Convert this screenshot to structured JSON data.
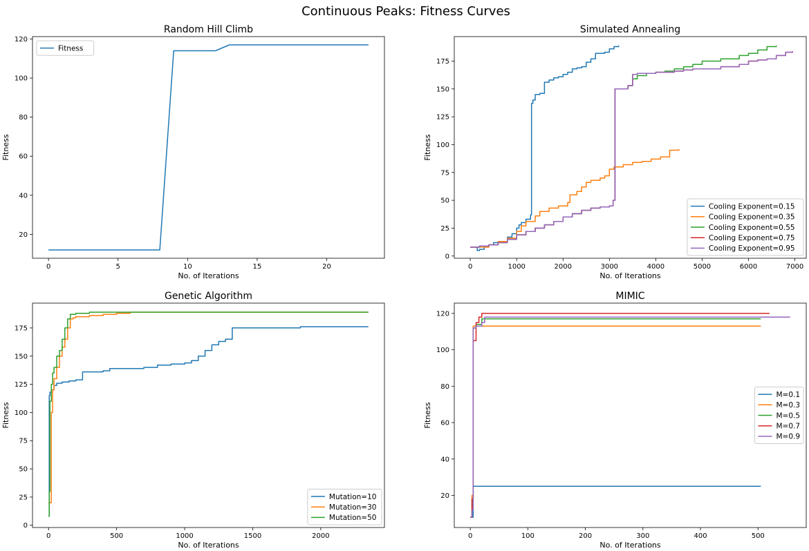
{
  "figure": {
    "title": "Continuous Peaks: Fitness Curves"
  },
  "chart_data": [
    {
      "type": "line",
      "title": "Random Hill Climb",
      "xlabel": "No. of Iterations",
      "ylabel": "Fitness",
      "xlim": [
        -1.15,
        24.15
      ],
      "ylim": [
        7.75,
        121.25
      ],
      "xticks": [
        0,
        5,
        10,
        15,
        20
      ],
      "yticks": [
        20,
        40,
        60,
        80,
        100,
        120
      ],
      "legend_position": "upper-left",
      "step": false,
      "series": [
        {
          "name": "Fitness",
          "color": "#1f77b4",
          "x": [
            0,
            8,
            9,
            12,
            13,
            23
          ],
          "y": [
            12,
            12,
            114,
            114,
            117,
            117
          ]
        }
      ]
    },
    {
      "type": "line",
      "title": "Simulated Annealing",
      "xlabel": "No. of Iterations",
      "ylabel": "Fitness",
      "xlim": [
        -345,
        7245
      ],
      "ylim": [
        -2,
        197
      ],
      "xticks": [
        0,
        1000,
        2000,
        3000,
        4000,
        5000,
        6000,
        7000
      ],
      "yticks": [
        0,
        25,
        50,
        75,
        100,
        125,
        150,
        175
      ],
      "legend_position": "lower-right",
      "step": true,
      "series": [
        {
          "name": "Cooling Exponent=0.15",
          "color": "#1f77b4",
          "x": [
            0,
            100,
            150,
            200,
            300,
            400,
            500,
            600,
            800,
            900,
            1000,
            1050,
            1100,
            1200,
            1300,
            1320,
            1350,
            1400,
            1500,
            1600,
            1700,
            1800,
            1900,
            2000,
            2100,
            2200,
            2300,
            2400,
            2500,
            2600,
            2700,
            2800,
            2900,
            3000,
            3100,
            3200
          ],
          "y": [
            8,
            8,
            5,
            6,
            8,
            10,
            12,
            13,
            17,
            20,
            25,
            28,
            30,
            33,
            37,
            137,
            140,
            145,
            146,
            156,
            158,
            160,
            161,
            163,
            165,
            168,
            169,
            170,
            174,
            177,
            182,
            182,
            183,
            186,
            188,
            189
          ]
        },
        {
          "name": "Cooling Exponent=0.35",
          "color": "#ff7f0e",
          "x": [
            0,
            100,
            200,
            400,
            600,
            800,
            1000,
            1100,
            1200,
            1300,
            1400,
            1500,
            1700,
            1900,
            2100,
            2150,
            2300,
            2400,
            2500,
            2600,
            2800,
            2900,
            3000,
            3100,
            3300,
            3500,
            3700,
            3900,
            4100,
            4300,
            4500
          ],
          "y": [
            8,
            8,
            8,
            10,
            13,
            16,
            22,
            27,
            31,
            31,
            36,
            40,
            43,
            45,
            48,
            55,
            58,
            62,
            66,
            68,
            70,
            72,
            78,
            80,
            82,
            84,
            85,
            87,
            89,
            95,
            96
          ]
        },
        {
          "name": "Cooling Exponent=0.55",
          "color": "#2ca02c",
          "x": [
            0,
            200,
            400,
            600,
            800,
            1000,
            1200,
            1400,
            1600,
            1800,
            2000,
            2200,
            2400,
            2600,
            2800,
            3000,
            3080,
            3120,
            3400,
            3500,
            3600,
            3800,
            4000,
            4200,
            4400,
            4600,
            4800,
            5000,
            5400,
            5800,
            6000,
            6200,
            6400,
            6600
          ],
          "y": [
            8,
            9,
            10,
            12,
            15,
            19,
            22,
            25,
            28,
            31,
            35,
            38,
            41,
            43,
            44,
            45,
            50,
            150,
            153,
            159,
            162,
            164,
            165,
            166,
            168,
            170,
            172,
            175,
            177,
            180,
            182,
            185,
            188,
            189
          ]
        },
        {
          "name": "Cooling Exponent=0.75",
          "color": "#d62728",
          "x": [
            0,
            200,
            400,
            600,
            800,
            1000,
            1200,
            1400,
            1600,
            1800,
            2000,
            2200,
            2400,
            2600,
            2800,
            3000,
            3080,
            3120,
            3400,
            3500,
            3600,
            3800,
            4000,
            4200,
            4400,
            4600,
            4800,
            5000,
            5400,
            5800,
            6000,
            6200,
            6400,
            6600,
            6800,
            6950
          ],
          "y": [
            8,
            9,
            10,
            12,
            15,
            19,
            22,
            25,
            28,
            31,
            35,
            38,
            41,
            43,
            44,
            45,
            50,
            150,
            153,
            163,
            164,
            164,
            165,
            165,
            166,
            167,
            168,
            168,
            170,
            172,
            175,
            176,
            177,
            180,
            183,
            184
          ]
        },
        {
          "name": "Cooling Exponent=0.95",
          "color": "#9467bd",
          "x": [
            0,
            200,
            400,
            600,
            800,
            1000,
            1200,
            1400,
            1600,
            1800,
            2000,
            2200,
            2400,
            2600,
            2800,
            3000,
            3080,
            3120,
            3400,
            3500,
            3600,
            3800,
            4000,
            4200,
            4400,
            4600,
            4800,
            5000,
            5400,
            5800,
            6000,
            6200,
            6400,
            6600,
            6800,
            6950
          ],
          "y": [
            8,
            9,
            10,
            12,
            15,
            19,
            22,
            25,
            28,
            31,
            35,
            38,
            41,
            43,
            44,
            45,
            50,
            150,
            153,
            163,
            164,
            164,
            165,
            165,
            166,
            167,
            168,
            168,
            170,
            172,
            175,
            176,
            177,
            180,
            183,
            184
          ]
        }
      ]
    },
    {
      "type": "line",
      "title": "Genetic Algorithm",
      "xlabel": "No. of Iterations",
      "ylabel": "Fitness",
      "xlim": [
        -118,
        2468
      ],
      "ylim": [
        -2,
        197
      ],
      "xticks": [
        0,
        500,
        1000,
        1500,
        2000
      ],
      "yticks": [
        0,
        25,
        50,
        75,
        100,
        125,
        150,
        175
      ],
      "legend_position": "lower-right",
      "step": true,
      "series": [
        {
          "name": "Mutation=10",
          "color": "#1f77b4",
          "x": [
            0,
            5,
            10,
            20,
            40,
            60,
            100,
            150,
            200,
            250,
            300,
            400,
            450,
            700,
            800,
            900,
            1000,
            1050,
            1100,
            1150,
            1200,
            1250,
            1300,
            1350,
            1400,
            1600,
            1800,
            1850,
            2000,
            2350
          ],
          "y": [
            8,
            115,
            118,
            120,
            124,
            126,
            127,
            128,
            129,
            136,
            136,
            137,
            139,
            140,
            142,
            143,
            144,
            146,
            150,
            155,
            160,
            163,
            165,
            175,
            175,
            175,
            175,
            176,
            176,
            176
          ]
        },
        {
          "name": "Mutation=30",
          "color": "#ff7f0e",
          "x": [
            0,
            15,
            20,
            30,
            40,
            60,
            80,
            100,
            120,
            140,
            160,
            180,
            200,
            300,
            400,
            500,
            600,
            2350
          ],
          "y": [
            20,
            20,
            100,
            120,
            130,
            140,
            150,
            158,
            165,
            175,
            183,
            184,
            185,
            186,
            187,
            188,
            189,
            189
          ]
        },
        {
          "name": "Mutation=50",
          "color": "#2ca02c",
          "x": [
            0,
            5,
            10,
            20,
            30,
            40,
            60,
            80,
            100,
            120,
            140,
            160,
            200,
            300,
            350,
            2350
          ],
          "y": [
            8,
            30,
            110,
            125,
            135,
            140,
            150,
            155,
            165,
            175,
            183,
            187,
            188,
            189,
            189,
            189
          ]
        }
      ]
    },
    {
      "type": "line",
      "title": "MIMIC",
      "xlabel": "No. of Iterations",
      "ylabel": "Fitness",
      "xlim": [
        -27.8,
        583.8
      ],
      "ylim": [
        2.35,
        125.65
      ],
      "xticks": [
        0,
        100,
        200,
        300,
        400,
        500
      ],
      "yticks": [
        20,
        40,
        60,
        80,
        100,
        120
      ],
      "legend_position": "center-right",
      "step": true,
      "series": [
        {
          "name": "M=0.1",
          "color": "#1f77b4",
          "x": [
            0,
            5,
            505
          ],
          "y": [
            8,
            25,
            25
          ]
        },
        {
          "name": "M=0.3",
          "color": "#ff7f0e",
          "x": [
            0,
            3,
            5,
            505
          ],
          "y": [
            8,
            20,
            113,
            113
          ]
        },
        {
          "name": "M=0.5",
          "color": "#2ca02c",
          "x": [
            0,
            3,
            5,
            10,
            20,
            505
          ],
          "y": [
            8,
            18,
            112,
            114,
            117,
            117
          ]
        },
        {
          "name": "M=0.7",
          "color": "#d62728",
          "x": [
            0,
            3,
            5,
            10,
            15,
            20,
            520
          ],
          "y": [
            8,
            18,
            105,
            115,
            118,
            120,
            120
          ]
        },
        {
          "name": "M=0.9",
          "color": "#9467bd",
          "x": [
            0,
            3,
            5,
            10,
            20,
            25,
            556
          ],
          "y": [
            8,
            12,
            112,
            113,
            115,
            118,
            118
          ]
        }
      ]
    }
  ]
}
